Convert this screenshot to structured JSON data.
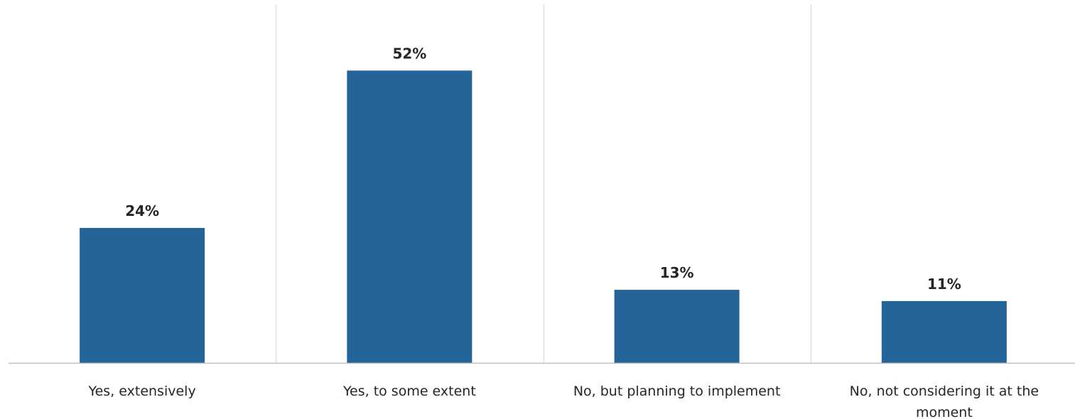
{
  "chart_data": {
    "type": "bar",
    "categories": [
      "Yes, extensively",
      "Yes, to some extent",
      "No, but planning to implement",
      "No, not considering it at the moment"
    ],
    "category_lines": [
      [
        "Yes, extensively"
      ],
      [
        "Yes, to some extent"
      ],
      [
        "No, but planning to implement"
      ],
      [
        "No, not considering it at the",
        "moment"
      ]
    ],
    "values": [
      24,
      52,
      13,
      11
    ],
    "data_labels": [
      "24%",
      "52%",
      "13%",
      "11%"
    ],
    "title": "",
    "xlabel": "",
    "ylabel": "",
    "ylim": [
      0,
      60
    ],
    "grid": "vertical category separators",
    "legend": "none",
    "colors": {
      "bar": "#246498",
      "grid": "#d9d9d9",
      "axis": "#bfbfbf",
      "text": "#262626"
    }
  }
}
